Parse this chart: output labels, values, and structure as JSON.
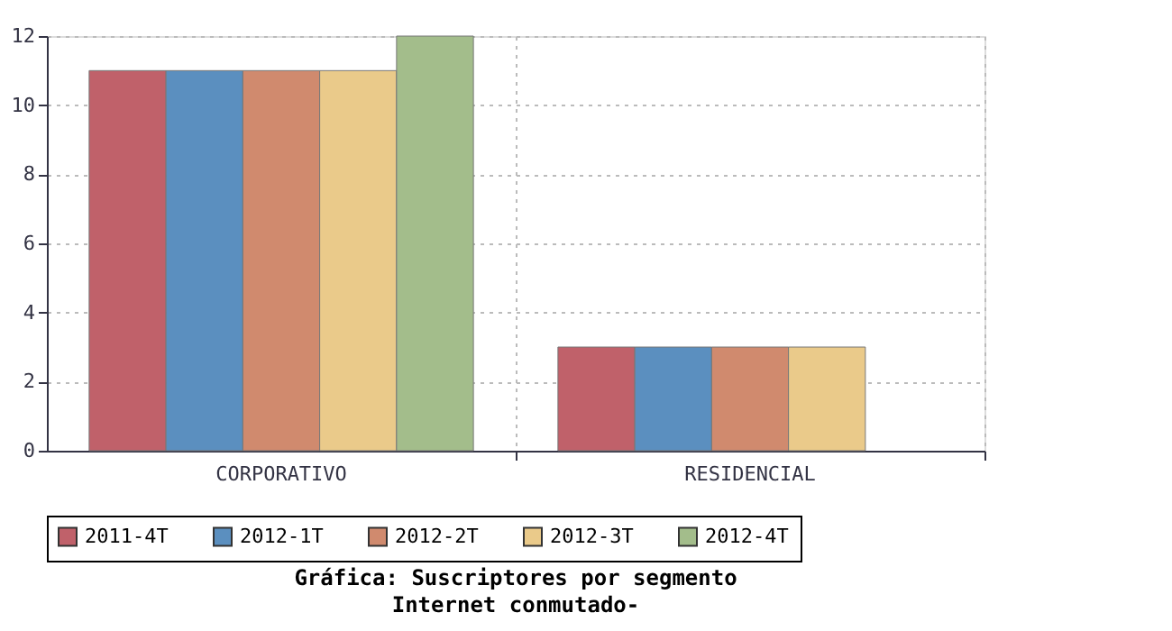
{
  "chart_data": {
    "type": "bar",
    "title": "Gráfica: Suscriptores por segmento",
    "subtitle": "Internet conmutado-",
    "categories": [
      "CORPORATIVO",
      "RESIDENCIAL"
    ],
    "series": [
      {
        "name": "2011-4T",
        "color": "#c0616a",
        "values": [
          11,
          3
        ]
      },
      {
        "name": "2012-1T",
        "color": "#5b8fbf",
        "values": [
          11,
          3
        ]
      },
      {
        "name": "2012-2T",
        "color": "#d08a6e",
        "values": [
          11,
          3
        ]
      },
      {
        "name": "2012-3T",
        "color": "#eaca8a",
        "values": [
          11,
          3
        ]
      },
      {
        "name": "2012-4T",
        "color": "#a3bd8b",
        "values": [
          12,
          null
        ]
      }
    ],
    "ylim": [
      0,
      12
    ],
    "yticks": [
      0,
      2,
      4,
      6,
      8,
      10,
      12
    ],
    "grid": true,
    "legend": "bottom"
  }
}
